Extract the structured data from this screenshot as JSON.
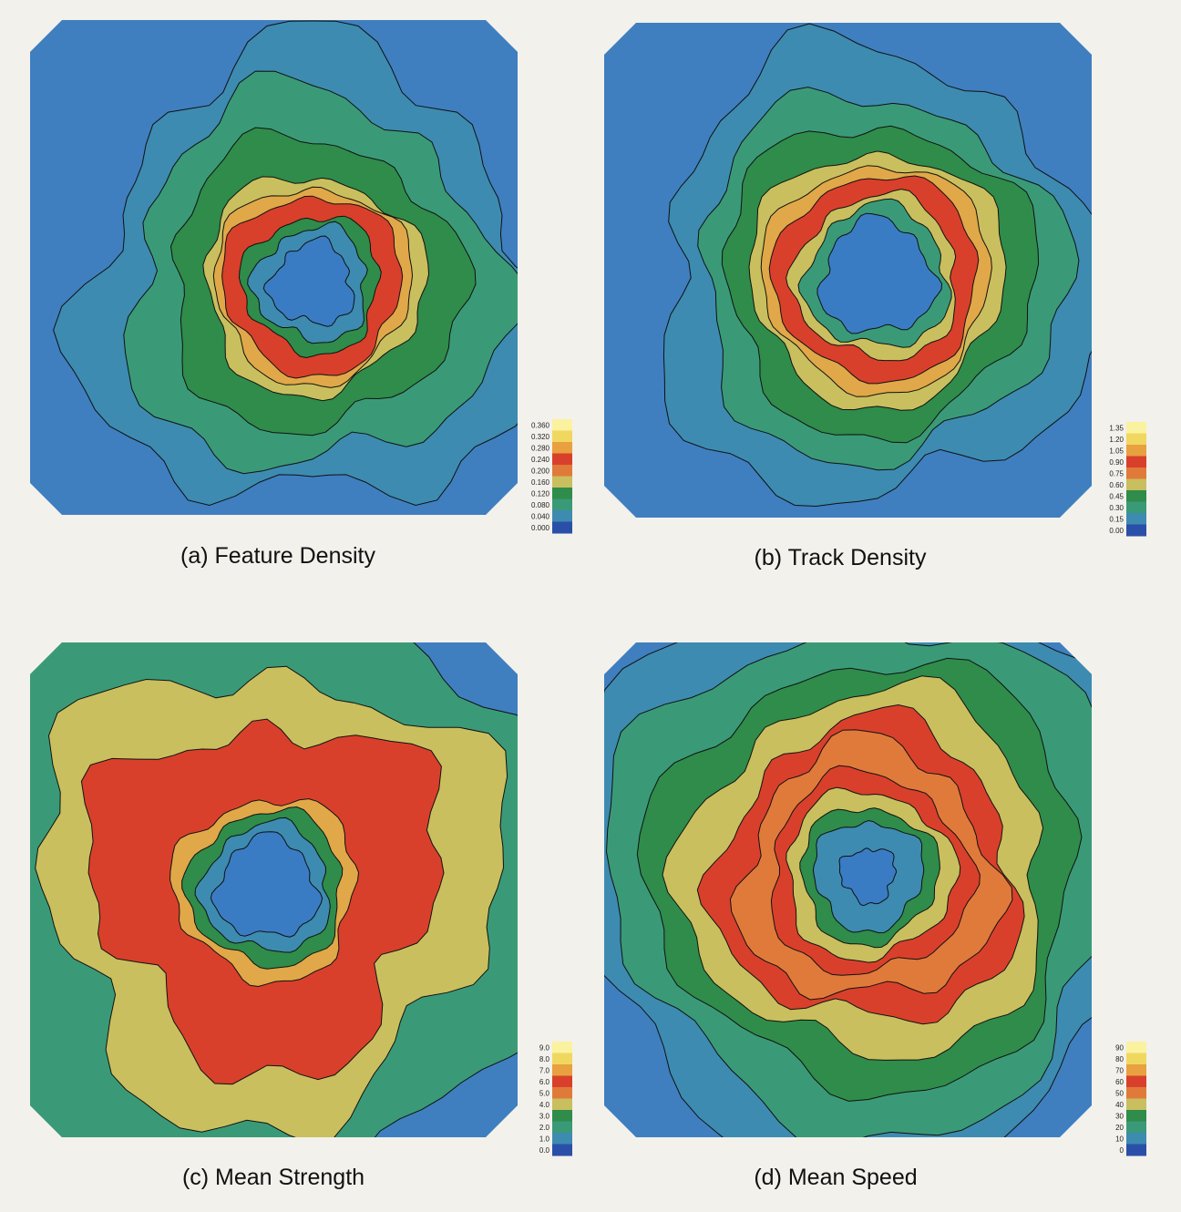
{
  "panels": [
    {
      "caption": "(a) Feature Density",
      "colorbar": [
        "0.360",
        "0.320",
        "0.280",
        "0.240",
        "0.200",
        "0.160",
        "0.120",
        "0.080",
        "0.040",
        "0.000"
      ]
    },
    {
      "caption": "(b) Track Density",
      "colorbar": [
        "1.35",
        "1.20",
        "1.05",
        "0.90",
        "0.75",
        "0.60",
        "0.45",
        "0.30",
        "0.15",
        "0.00"
      ]
    },
    {
      "caption": "(c) Mean Strength",
      "colorbar": [
        "9.0",
        "8.0",
        "7.0",
        "6.0",
        "5.0",
        "4.0",
        "3.0",
        "2.0",
        "1.0",
        "0.0"
      ]
    },
    {
      "caption": "(d) Mean Speed",
      "colorbar": [
        "90",
        "80",
        "70",
        "60",
        "50",
        "40",
        "30",
        "20",
        "10",
        "0"
      ]
    }
  ]
}
